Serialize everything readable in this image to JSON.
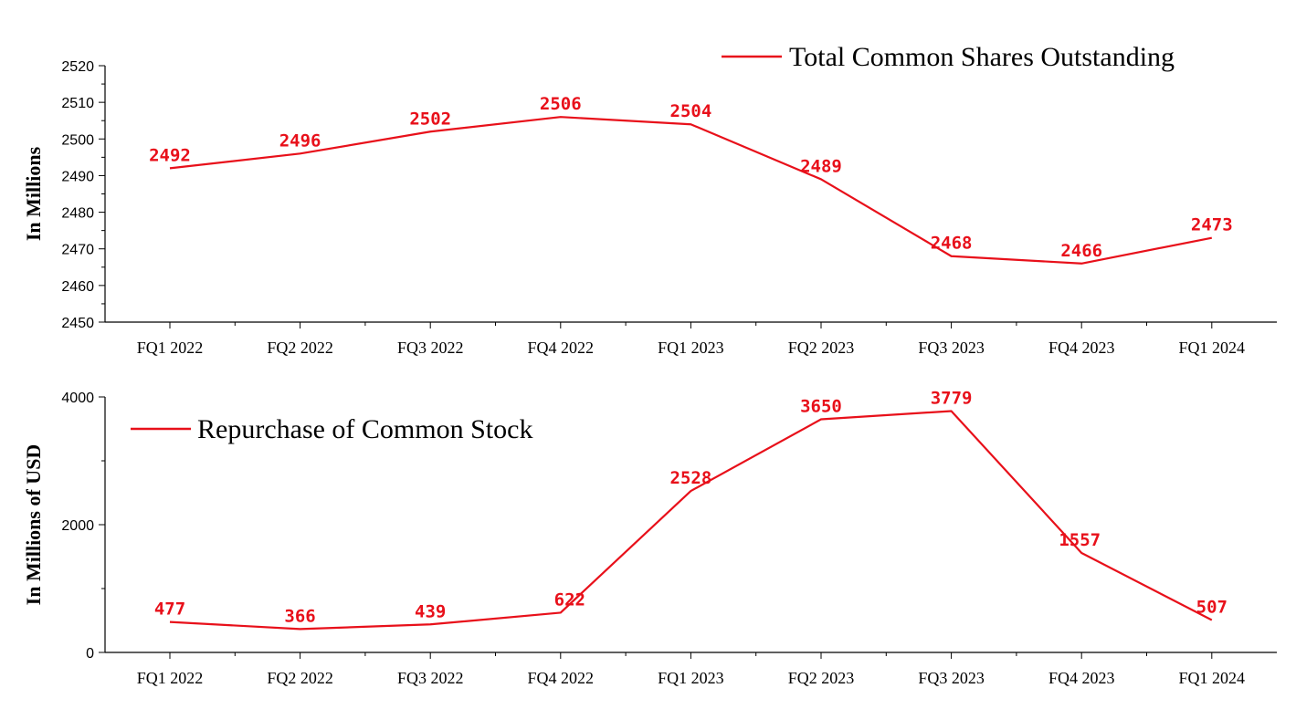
{
  "chart_data": [
    {
      "type": "line",
      "categories": [
        "FQ1 2022",
        "FQ2 2022",
        "FQ3 2022",
        "FQ4 2022",
        "FQ1 2023",
        "FQ2 2023",
        "FQ3 2023",
        "FQ4 2023",
        "FQ1 2024"
      ],
      "series": [
        {
          "name": "Total Common Shares Outstanding",
          "values": [
            2492,
            2496,
            2502,
            2506,
            2504,
            2489,
            2468,
            2466,
            2473
          ],
          "color": "#e8101a"
        }
      ],
      "ylabel": "In Millions",
      "xlabel": "",
      "ylim": [
        2450,
        2520
      ],
      "yticks": [
        2450,
        2460,
        2470,
        2480,
        2490,
        2500,
        2510,
        2520
      ],
      "legend_position": "top-right",
      "grid": false,
      "data_labels": true
    },
    {
      "type": "line",
      "categories": [
        "FQ1 2022",
        "FQ2 2022",
        "FQ3 2022",
        "FQ4 2022",
        "FQ1 2023",
        "FQ2 2023",
        "FQ3 2023",
        "FQ4 2023",
        "FQ1 2024"
      ],
      "series": [
        {
          "name": "Repurchase of Common Stock",
          "values": [
            477,
            366,
            439,
            622,
            2528,
            3650,
            3779,
            1557,
            507
          ],
          "color": "#e8101a"
        }
      ],
      "ylabel": "In Millions of USD",
      "xlabel": "",
      "ylim": [
        0,
        4000
      ],
      "yticks": [
        0,
        2000,
        4000
      ],
      "legend_position": "top-left",
      "grid": false,
      "data_labels": true
    }
  ]
}
